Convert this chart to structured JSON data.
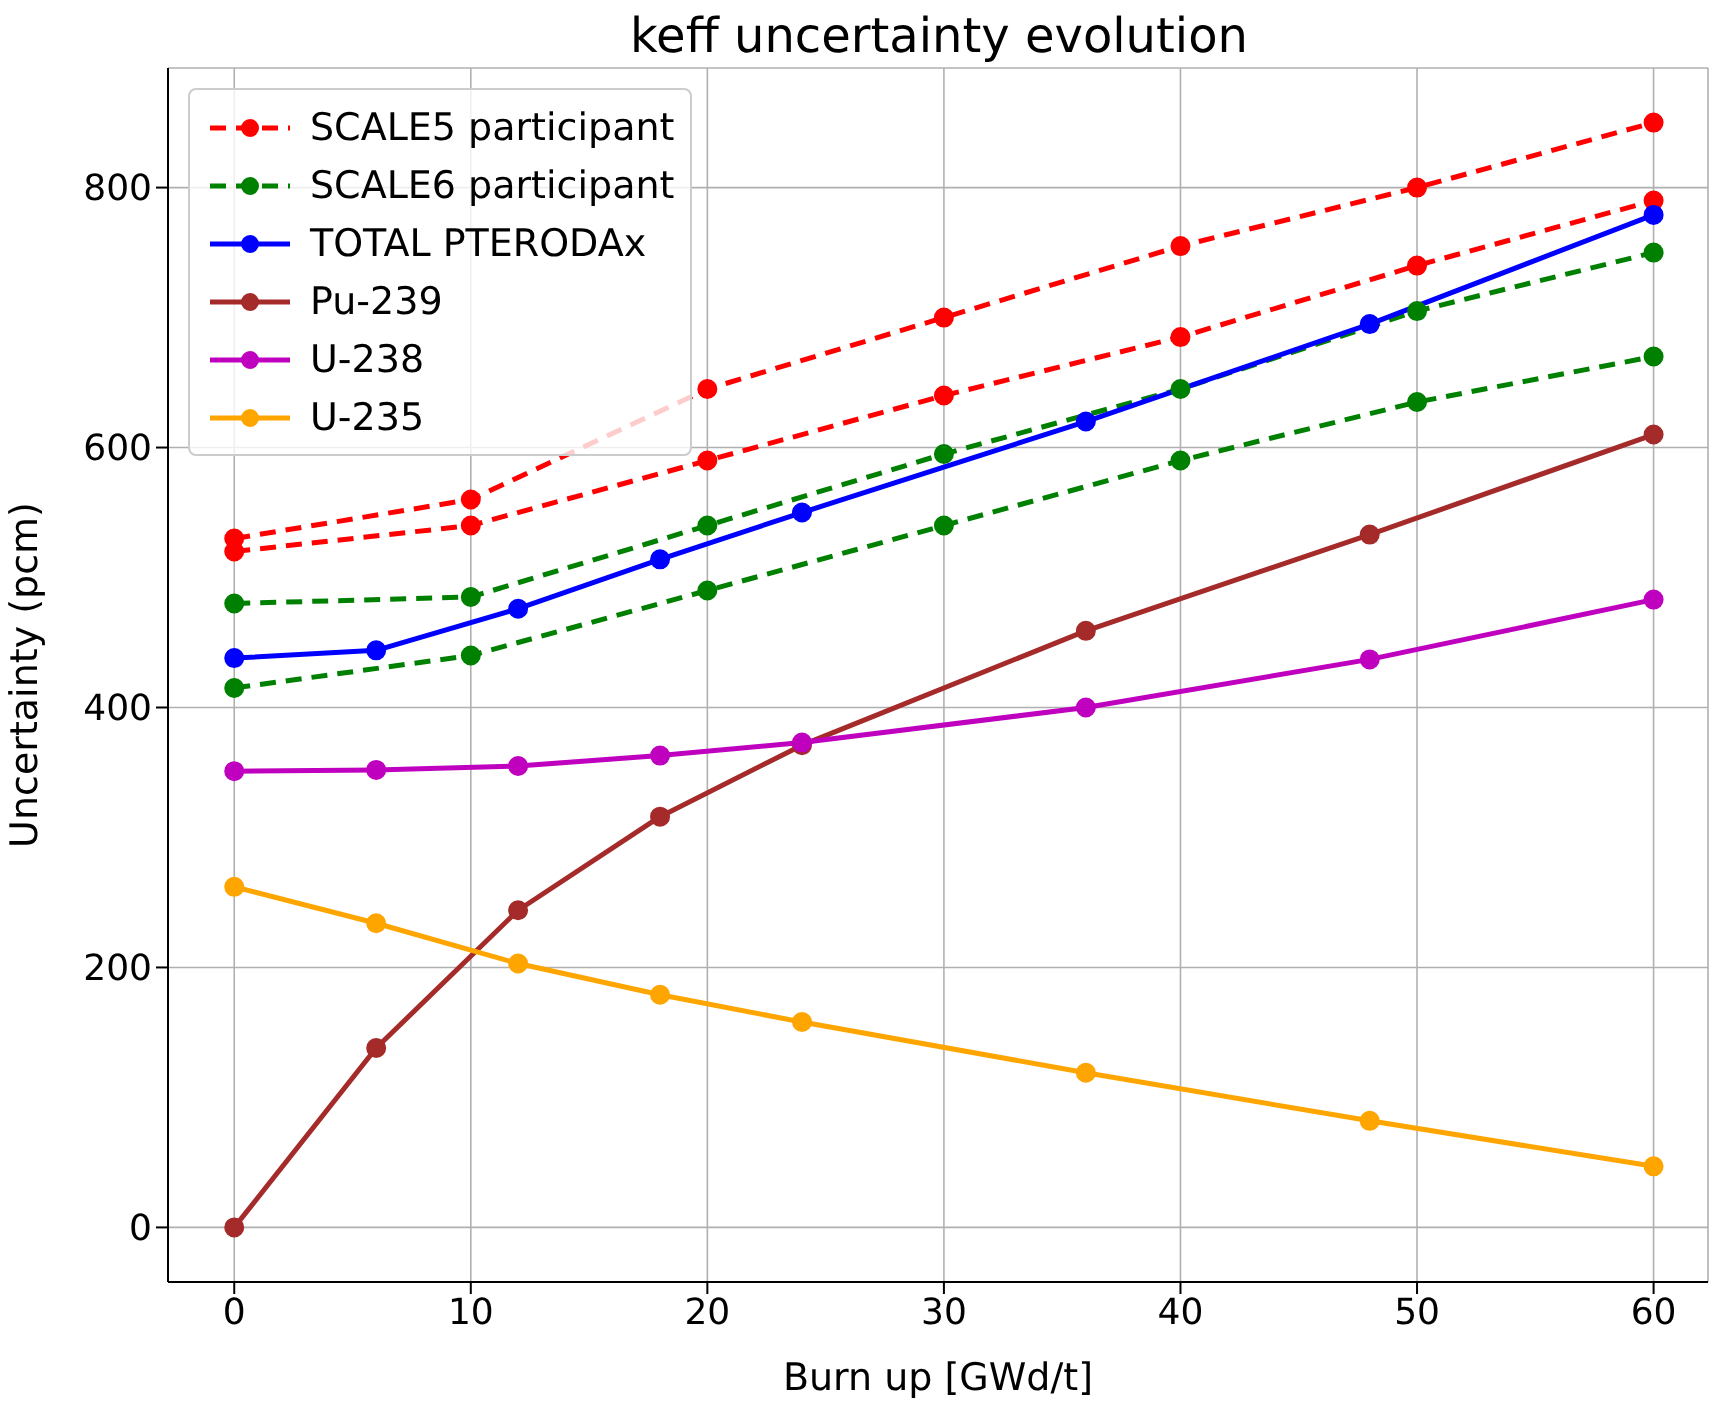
{
  "chart_data": {
    "type": "line",
    "title": "keff uncertainty evolution",
    "xlabel": "Burn up [GWd/t]",
    "ylabel": "Uncertainty (pcm)",
    "xlim": [
      -2.8,
      62.3
    ],
    "xticks": [
      0,
      10,
      20,
      30,
      40,
      50,
      60
    ],
    "ylim": [
      -42,
      892
    ],
    "yticks": [
      0,
      200,
      400,
      600,
      800
    ],
    "grid": true,
    "legend": "top left",
    "marker": "circle",
    "series": [
      {
        "name": "SCALE5 participant",
        "color": "#ff0000",
        "line_style": "dashed",
        "x": [
          0,
          10,
          20,
          30,
          40,
          50,
          60
        ],
        "values": [
          530,
          560,
          645,
          700,
          755,
          800,
          850
        ]
      },
      {
        "color": "#ff0000",
        "line_style": "dashed",
        "x": [
          0,
          10,
          20,
          30,
          40,
          50,
          60
        ],
        "values": [
          520,
          540,
          590,
          640,
          685,
          740,
          790
        ]
      },
      {
        "name": "SCALE6 participant",
        "color": "#008000",
        "line_style": "dashed",
        "x": [
          0,
          10,
          20,
          30,
          40,
          50,
          60
        ],
        "values": [
          480,
          485,
          540,
          595,
          645,
          705,
          750
        ]
      },
      {
        "color": "#008000",
        "line_style": "dashed",
        "x": [
          0,
          10,
          20,
          30,
          40,
          50,
          60
        ],
        "values": [
          415,
          440,
          490,
          540,
          590,
          635,
          670
        ]
      },
      {
        "name": "TOTAL PTERODAx",
        "color": "#0000ff",
        "line_style": "solid",
        "x": [
          0,
          6,
          12,
          18,
          24,
          36,
          48,
          60
        ],
        "values": [
          438,
          444,
          476,
          514,
          550,
          620,
          695,
          779
        ]
      },
      {
        "name": "Pu-239",
        "color": "#a52a2a",
        "line_style": "solid",
        "x": [
          0,
          6,
          12,
          18,
          24,
          36,
          48,
          60
        ],
        "values": [
          0,
          138,
          244,
          316,
          371,
          459,
          533,
          610
        ]
      },
      {
        "name": "U-238",
        "color": "#bf00bf",
        "line_style": "solid",
        "x": [
          0,
          6,
          12,
          18,
          24,
          36,
          48,
          60
        ],
        "values": [
          351,
          352,
          355,
          363,
          373,
          400,
          437,
          483
        ]
      },
      {
        "name": "U-235",
        "color": "#ffa500",
        "line_style": "solid",
        "x": [
          0,
          6,
          12,
          18,
          24,
          36,
          48,
          60
        ],
        "values": [
          262,
          234,
          203,
          179,
          158,
          119,
          82,
          47
        ]
      }
    ]
  }
}
